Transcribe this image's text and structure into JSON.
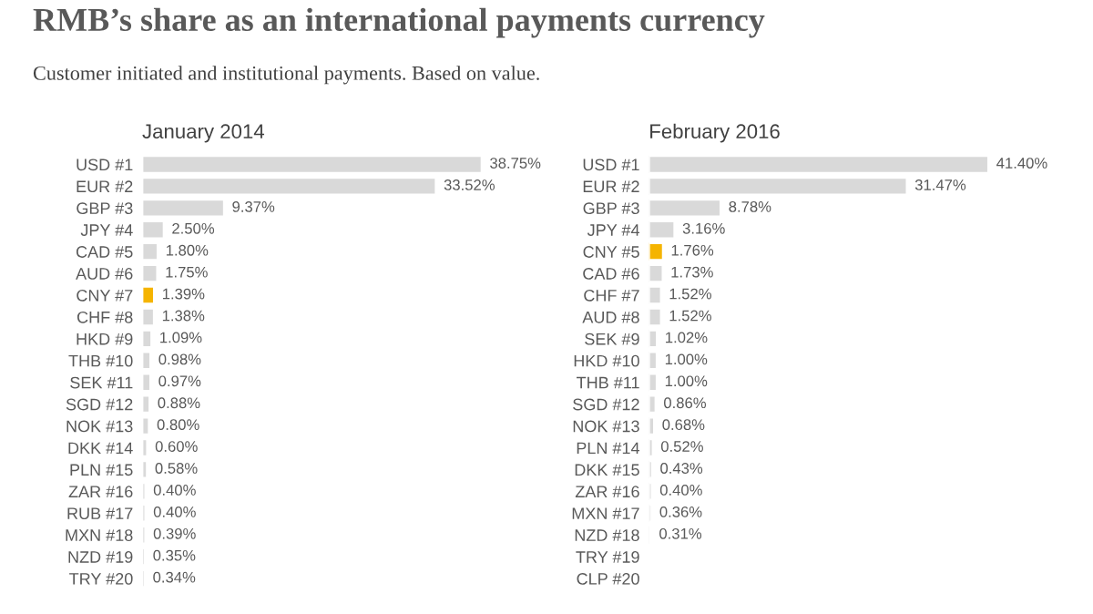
{
  "chart_data": [
    {
      "type": "bar",
      "orientation": "horizontal",
      "title": "January 2014",
      "tick_labels": "y",
      "annotations": [
        "RMB’s share as an international payments currency",
        "Customer initiated and institutional payments. Based on value."
      ],
      "categories": [
        "USD #1",
        "EUR #2",
        "GBP #3",
        "JPY #4",
        "CAD #5",
        "AUD #6",
        "CNY #7",
        "CHF #8",
        "HKD #9",
        "THB #10",
        "SEK #11",
        "SGD #12",
        "NOK #13",
        "DKK #14",
        "PLN #15",
        "ZAR #16",
        "RUB #17",
        "MXN #18",
        "NZD #19",
        "TRY #20"
      ],
      "values": [
        38.75,
        33.52,
        9.37,
        2.5,
        1.8,
        1.75,
        1.39,
        1.38,
        1.09,
        0.98,
        0.97,
        0.88,
        0.8,
        0.6,
        0.58,
        0.4,
        0.4,
        0.39,
        0.35,
        0.34
      ],
      "value_labels": [
        "38.75%",
        "33.52%",
        "9.37%",
        "2.50%",
        "1.80%",
        "1.75%",
        "1.39%",
        "1.38%",
        "1.09%",
        "0.98%",
        "0.97%",
        "0.88%",
        "0.80%",
        "0.60%",
        "0.58%",
        "0.40%",
        "0.40%",
        "0.39%",
        "0.35%",
        "0.34%"
      ],
      "colors": [
        "#d9d9d9",
        "#d9d9d9",
        "#d9d9d9",
        "#d9d9d9",
        "#d9d9d9",
        "#d9d9d9",
        "#f5b400",
        "#d9d9d9",
        "#d9d9d9",
        "#d9d9d9",
        "#d9d9d9",
        "#d9d9d9",
        "#d9d9d9",
        "#d9d9d9",
        "#d9d9d9",
        "#d9d9d9",
        "#d9d9d9",
        "#d9d9d9",
        "#d9d9d9",
        "#d9d9d9"
      ]
    },
    {
      "type": "bar",
      "orientation": "horizontal",
      "title": "February 2016",
      "tick_labels": "y",
      "categories": [
        "USD #1",
        "EUR #2",
        "GBP #3",
        "JPY #4",
        "CNY #5",
        "CAD #6",
        "CHF #7",
        "AUD #8",
        "SEK #9",
        "HKD #10",
        "THB #11",
        "SGD #12",
        "NOK #13",
        "PLN #14",
        "DKK #15",
        "ZAR #16",
        "MXN #17",
        "NZD #18",
        "TRY #19",
        "CLP #20"
      ],
      "values": [
        41.4,
        31.47,
        8.78,
        3.16,
        1.76,
        1.73,
        1.52,
        1.52,
        1.02,
        1.0,
        1.0,
        0.86,
        0.68,
        0.52,
        0.43,
        0.4,
        0.36,
        0.31,
        null,
        null
      ],
      "value_labels": [
        "41.40%",
        "31.47%",
        "8.78%",
        "3.16%",
        "1.76%",
        "1.73%",
        "1.52%",
        "1.52%",
        "1.02%",
        "1.00%",
        "1.00%",
        "0.86%",
        "0.68%",
        "0.52%",
        "0.43%",
        "0.40%",
        "0.36%",
        "0.31%",
        null,
        null
      ],
      "colors": [
        "#d9d9d9",
        "#d9d9d9",
        "#d9d9d9",
        "#d9d9d9",
        "#f5b400",
        "#d9d9d9",
        "#d9d9d9",
        "#d9d9d9",
        "#d9d9d9",
        "#d9d9d9",
        "#d9d9d9",
        "#d9d9d9",
        "#d9d9d9",
        "#d9d9d9",
        "#d9d9d9",
        "#d9d9d9",
        "#d9d9d9",
        "#d9d9d9",
        "#d9d9d9",
        "#d9d9d9"
      ]
    }
  ]
}
